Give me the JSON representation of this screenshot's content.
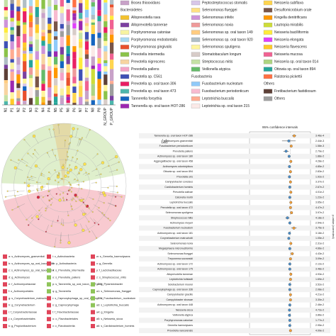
{
  "panel_a": {
    "label": "(a)",
    "samples": [
      "N1",
      "P1",
      "N2",
      "P2",
      "N3",
      "P3",
      "N4",
      "P4",
      "N5",
      "P5",
      "N6",
      "P6",
      "N7",
      "P7",
      "N8",
      "P8",
      "N_GROUP",
      "P_GROUP"
    ],
    "legend_columns": [
      [
        {
          "name": "Bosea thiooxidans",
          "color": "#c8a2c8"
        },
        {
          "heading": "Bacteroidetes"
        },
        {
          "name": "Alloprevotella rava",
          "color": "#f2c12e"
        },
        {
          "name": "Alloprevotella tannerae",
          "color": "#7b3fa0"
        },
        {
          "name": "Porphyromonas catoniae",
          "color": "#f7f3a0"
        },
        {
          "name": "Porphyromonas endodontalis",
          "color": "#a7d9f2"
        },
        {
          "name": "Porphyromonas gingivalis",
          "color": "#e8502d"
        },
        {
          "name": "Prevotella intermedia",
          "color": "#8bc34a"
        },
        {
          "name": "Prevotella nigrescens",
          "color": "#f7d4a0"
        },
        {
          "name": "Prevotella pallens",
          "color": "#f4a3c7"
        },
        {
          "name": "Prevotella sp. C561",
          "color": "#3f51b5"
        },
        {
          "name": "Prevotella sp. oral taxon 306",
          "color": "#e91e63"
        },
        {
          "name": "Prevotella sp. oral taxon 473",
          "color": "#4db6ac"
        },
        {
          "name": "Tannerella forsythia",
          "color": "#1565c0"
        },
        {
          "name": "Tannerella sp. oral taxon HOT-286",
          "color": "#9c27b0"
        }
      ],
      [
        {
          "name": "Peptostreptococcus stomatis",
          "color": "#d8c7e8"
        },
        {
          "name": "Selenomonas flueggei",
          "color": "#ffe082"
        },
        {
          "name": "Selenomonas infelix",
          "color": "#ce93d8"
        },
        {
          "name": "Selenomonas noxia",
          "color": "#ef9a9a"
        },
        {
          "name": "Selenomonas sp. oral taxon 149",
          "color": "#ffcc80"
        },
        {
          "name": "Selenomonas sp. oral taxon 920",
          "color": "#b0bec5"
        },
        {
          "name": "Selenomonas sputigena",
          "color": "#fff59d"
        },
        {
          "name": "Stomatobaculum longum",
          "color": "#d7ccc8"
        },
        {
          "name": "Streptococcus mitis",
          "color": "#c5e1a5"
        },
        {
          "name": "Veillonella atypica",
          "color": "#66bb6a"
        },
        {
          "heading": "Fusobacteria"
        },
        {
          "name": "Fusobacterium nucleatum",
          "color": "#90caf9"
        },
        {
          "name": "Fusobacterium periodonticum",
          "color": "#f8bbd0"
        },
        {
          "name": "Leptotrichia buccalis",
          "color": "#ffab91"
        },
        {
          "name": "Leptotrichia sp. oral taxon 215",
          "color": "#fbe9e7"
        }
      ],
      [
        {
          "name": "Neisseria subflava",
          "color": "#ffd54f"
        },
        {
          "name": "Desulfomicrobium orale",
          "color": "#795548"
        },
        {
          "name": "Kingella denitrificans",
          "color": "#ff9800"
        },
        {
          "name": "Lautropia mirabilis",
          "color": "#cddc39"
        },
        {
          "name": "Neisseria bacilliformis",
          "color": "#ffeb3b"
        },
        {
          "name": "Neisseria elongata",
          "color": "#e040fb"
        },
        {
          "name": "Neisseria flavescens",
          "color": "#ffca28"
        },
        {
          "name": "Neisseria mucosa",
          "color": "#f06292"
        },
        {
          "name": "Neisseria sp. oral taxon 014",
          "color": "#aed581"
        },
        {
          "name": "Ottowia sp. oral taxon 894",
          "color": "#26a69a"
        },
        {
          "name": "Ralstonia pickettii",
          "color": "#ff7043"
        },
        {
          "heading": "Others"
        },
        {
          "name": "Fretibacterium fastidiosum",
          "color": "#5d4037"
        },
        {
          "name": "Others",
          "color": "#9e9e9e"
        }
      ]
    ]
  },
  "panel_b": {
    "legend": [
      {
        "text": "a: s_Actinomyces_graevenitzii",
        "color": "#e0455a"
      },
      {
        "text": "b: s_Actinomyces_sp_oral_taxon_180",
        "color": "#e0455a"
      },
      {
        "text": "c: s_Actinomyces_sp_oral_taxon_414",
        "color": "#e0455a"
      },
      {
        "text": "d: g_Actinomyces",
        "color": "#e0455a"
      },
      {
        "text": "e: f_Actinomycetaceae",
        "color": "#e0455a"
      },
      {
        "text": "f: o_Actinomycetales",
        "color": "#e0455a"
      },
      {
        "text": "g: s_Corynebacterium_matruchotii",
        "color": "#e0455a"
      },
      {
        "text": "h: g_Corynebacterium",
        "color": "#e0455a"
      },
      {
        "text": "i: f_Corynebacteriaceae",
        "color": "#e0455a"
      },
      {
        "text": "j: o_Corynebacteriales",
        "color": "#e0455a"
      },
      {
        "text": "k: g_Propionibacterium",
        "color": "#e0455a"
      },
      {
        "text": "l: c_Actinobacteria",
        "color": "#e0455a"
      },
      {
        "text": "m: p_Actinobacteria",
        "color": "#e0455a"
      },
      {
        "text": "n: s_Prevotella_intermedia",
        "color": "#8fc45a"
      },
      {
        "text": "o: s_Prevotella_pallens",
        "color": "#8fc45a"
      },
      {
        "text": "p: s_Tannerella_sp_oral_taxon_HOT_286",
        "color": "#8fc45a"
      },
      {
        "text": "q: g_Tannerella",
        "color": "#8fc45a"
      },
      {
        "text": "r: s_Capnocytophaga_sp_oral_taxon_336",
        "color": "#e0455a"
      },
      {
        "text": "s: g_Capnocytophaga",
        "color": "#e0455a"
      },
      {
        "text": "t: f_Flavobacteriaceae",
        "color": "#e0455a"
      },
      {
        "text": "u: o_Flavobacteriales",
        "color": "#e0455a"
      },
      {
        "text": "v: c_Flavobacteriia",
        "color": "#e0455a"
      },
      {
        "text": "w: s_Gemella_haemolysans",
        "color": "#e0455a"
      },
      {
        "text": "x: g_Gemella",
        "color": "#e0455a"
      },
      {
        "text": "y: f_Lactobacillaceae",
        "color": "#e0455a"
      },
      {
        "text": "z: s_Streptococcus_mitis",
        "color": "#e0455a"
      },
      {
        "text": "a0: g_Pyramidobacter",
        "color": "#8fc45a"
      },
      {
        "text": "a1: s_Selenomonas_flueggei",
        "color": "#8fc45a"
      },
      {
        "text": "a2: s_Fusobacterium_nucleatum",
        "color": "#8fc45a"
      },
      {
        "text": "a3: s_Leptotrichia_buccalis",
        "color": "#8fc45a"
      },
      {
        "text": "a4: g_Kingella",
        "color": "#e0455a"
      },
      {
        "text": "a5: s_Neisseria_sicca",
        "color": "#e0455a"
      },
      {
        "text": "a6: s_Cardiobacterium_hominis",
        "color": "#e0455a"
      }
    ]
  },
  "panel_c": {
    "ci_title": "95% confidence intervals",
    "p_axis_label": "p-value (corrected)",
    "xlim": [
      -0.12,
      0.06
    ],
    "rows": [
      {
        "taxon": "Tannerella sp. oral taxon HOT-286",
        "diff": 0.012,
        "ci": 0.006,
        "p": "3.46e-4"
      },
      {
        "taxon": "Actinomyces graevenitzii",
        "diff": -0.004,
        "ci": 0.02,
        "p": "2.44e-3"
      },
      {
        "taxon": "Fusobacterium periodonticum",
        "diff": 0.003,
        "ci": 0.002,
        "p": "1.58e-3"
      },
      {
        "taxon": "Prevotella pallens",
        "diff": -0.012,
        "ci": 0.008,
        "p": "2.79e-2"
      },
      {
        "taxon": "Actinomyces sp. oral taxon 180",
        "diff": -0.003,
        "ci": 0.002,
        "p": "1.88e-2"
      },
      {
        "taxon": "Aggregatibacter sp. oral taxon 458",
        "diff": 0.002,
        "ci": 0.002,
        "p": "4.28e-2"
      },
      {
        "taxon": "Actinomyces odontolyticus",
        "diff": -0.002,
        "ci": 0.002,
        "p": "4.85e-2"
      },
      {
        "taxon": "Ottowia sp. oral taxon 894",
        "diff": 0.001,
        "ci": 0.001,
        "p": "2.83e-2"
      },
      {
        "taxon": "Prevotella oris",
        "diff": -0.002,
        "ci": 0.002,
        "p": "1.92e-2"
      },
      {
        "taxon": "Campylobacter concisus",
        "diff": 0.001,
        "ci": 0.001,
        "p": "3.37e-2"
      },
      {
        "taxon": "Cardiobacterium hominis",
        "diff": -0.001,
        "ci": 0.001,
        "p": "2.67e-2"
      },
      {
        "taxon": "Prevotella salivae",
        "diff": 0.002,
        "ci": 0.002,
        "p": "4.01e-2"
      },
      {
        "taxon": "Catonella morbi",
        "diff": -0.001,
        "ci": 0.001,
        "p": "1.22e-2"
      },
      {
        "taxon": "Leptotrichia buccalis",
        "diff": 0.002,
        "ci": 0.002,
        "p": "3.65e-2"
      },
      {
        "taxon": "Prevotella sp. oral taxon 472",
        "diff": 0.001,
        "ci": 0.001,
        "p": "4.47e-2"
      },
      {
        "taxon": "Selenomonas sputigena",
        "diff": 0.004,
        "ci": 0.003,
        "p": "3.97e-2"
      },
      {
        "taxon": "Streptococcus mitis",
        "diff": -0.008,
        "ci": 0.006,
        "p": "4.18e-2"
      },
      {
        "taxon": "Actinomyces meyeri",
        "diff": -0.001,
        "ci": 0.001,
        "p": "2.54e-2"
      },
      {
        "taxon": "Fusobacterium nucleatum",
        "diff": 0.011,
        "ci": 0.008,
        "p": "3.75e-3"
      },
      {
        "taxon": "Actinomyces sp. oral taxon 181",
        "diff": -0.002,
        "ci": 0.002,
        "p": "3.18e-2"
      },
      {
        "taxon": "Corynebacterium matruchotii",
        "diff": -0.004,
        "ci": 0.003,
        "p": "1.05e-2"
      },
      {
        "taxon": "Selenomonas noxia",
        "diff": 0.002,
        "ci": 0.001,
        "p": "2.31e-2"
      },
      {
        "taxon": "Megasphaera micronuciformis",
        "diff": -0.001,
        "ci": 0.001,
        "p": "4.66e-2"
      },
      {
        "taxon": "Selenomonas flueggei",
        "diff": 0.006,
        "ci": 0.005,
        "p": "4.43e-2"
      },
      {
        "taxon": "Treponema socranskii",
        "diff": 0.001,
        "ci": 0.001,
        "p": "3.09e-2"
      },
      {
        "taxon": "Actinomyces sp. oral taxon 172",
        "diff": -0.001,
        "ci": 0.001,
        "p": "2.12e-2"
      },
      {
        "taxon": "Actinomyces sp. oral taxon 175",
        "diff": -0.001,
        "ci": 0.001,
        "p": "3.48e-2"
      },
      {
        "taxon": "Alloprevotella tannerae",
        "diff": 0.002,
        "ci": 0.002,
        "p": "4.93e-2"
      },
      {
        "taxon": "Leptotrichia hofstadii",
        "diff": 0.001,
        "ci": 0.001,
        "p": "1.69e-2"
      },
      {
        "taxon": "Solobacterium moorei",
        "diff": -0.001,
        "ci": 0.001,
        "p": "3.52e-2"
      },
      {
        "taxon": "Capnocytophaga sp. oral taxon 336",
        "diff": -0.001,
        "ci": 0.001,
        "p": "2.08e-2"
      },
      {
        "taxon": "Campylobacter gracilis",
        "diff": 0.001,
        "ci": 0.001,
        "p": "4.21e-2"
      },
      {
        "taxon": "Campylobacter showae",
        "diff": 0.001,
        "ci": 0.001,
        "p": "3.30e-2"
      },
      {
        "taxon": "Actinomyces sp. oral taxon 448",
        "diff": -0.001,
        "ci": 0.001,
        "p": "2.46e-2"
      },
      {
        "taxon": "Neisseria sicca",
        "diff": -0.002,
        "ci": 0.002,
        "p": "4.72e-2"
      },
      {
        "taxon": "Veillonella atypica",
        "diff": -0.002,
        "ci": 0.002,
        "p": "3.86e-2"
      },
      {
        "taxon": "Porphyromonas catoniae",
        "diff": -0.001,
        "ci": 0.001,
        "p": "1.77e-2"
      },
      {
        "taxon": "Gemella haemolysans",
        "diff": -0.001,
        "ci": 0.001,
        "p": "2.95e-2"
      },
      {
        "taxon": "Prevotella nanceiensis",
        "diff": 0.001,
        "ci": 0.001,
        "p": "4.09e-2"
      }
    ]
  }
}
